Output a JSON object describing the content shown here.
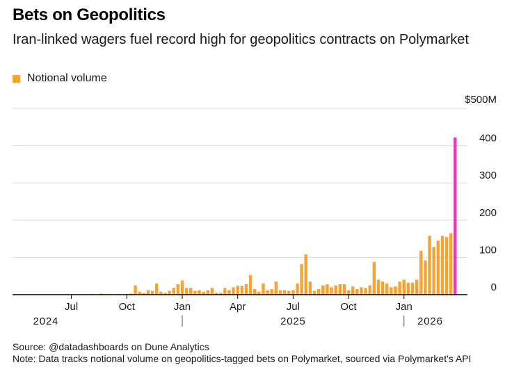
{
  "title": "Bets on Geopolitics",
  "subtitle": "Iran-linked wagers fuel record high for geopolitics contracts on Polymarket",
  "legend": {
    "label": "Notional volume"
  },
  "colors": {
    "bar": "#f5a431",
    "highlight": "#e63ab8",
    "grid": "#d9d9d9",
    "axis": "#000000"
  },
  "source": "Source: @datadashboards on Dune Analytics",
  "note": "Note: Data tracks notional volume on geopolitics-tagged bets on Polymarket, sourced via Polymarket's API",
  "chart_data": {
    "type": "bar",
    "title": "Bets on Geopolitics",
    "ylabel": "Notional volume",
    "y_unit_label": "$500M",
    "ylim": [
      0,
      500
    ],
    "y_ticks": [
      {
        "value": 0,
        "label": "0"
      },
      {
        "value": 100,
        "label": "100"
      },
      {
        "value": 200,
        "label": "200"
      },
      {
        "value": 300,
        "label": "300"
      },
      {
        "value": 400,
        "label": "400"
      },
      {
        "value": 500,
        "label": "$500M"
      }
    ],
    "x_ticks": [
      {
        "week": 12,
        "label": "Jul"
      },
      {
        "week": 25,
        "label": "Oct"
      },
      {
        "week": 38,
        "label": "Jan"
      },
      {
        "week": 51,
        "label": "Apr"
      },
      {
        "week": 64,
        "label": "Jul"
      },
      {
        "week": 77,
        "label": "Oct"
      },
      {
        "week": 90,
        "label": "Jan"
      }
    ],
    "year_labels": [
      {
        "week": 6,
        "label": "2024"
      },
      {
        "week": 64,
        "label": "2025"
      },
      {
        "week": 93,
        "label": "2026"
      }
    ],
    "year_dividers": [
      38,
      90
    ],
    "x_range_weeks": [
      0,
      104
    ],
    "series": [
      {
        "name": "Notional volume",
        "values": [
          0,
          0,
          0,
          0,
          0,
          0,
          0,
          0,
          0,
          0,
          0,
          0,
          0,
          0,
          0,
          0,
          0,
          2,
          1,
          3,
          0,
          2,
          1,
          2,
          1,
          2,
          3,
          25,
          8,
          4,
          12,
          10,
          30,
          8,
          5,
          10,
          18,
          28,
          38,
          18,
          18,
          10,
          12,
          8,
          12,
          18,
          5,
          5,
          18,
          12,
          20,
          24,
          24,
          28,
          52,
          15,
          8,
          30,
          12,
          15,
          35,
          12,
          12,
          10,
          12,
          30,
          82,
          108,
          35,
          10,
          15,
          25,
          28,
          20,
          25,
          28,
          28,
          12,
          22,
          15,
          20,
          18,
          25,
          88,
          40,
          35,
          30,
          20,
          22,
          35,
          40,
          32,
          32,
          40,
          118,
          92,
          158,
          128,
          145,
          158,
          155,
          165,
          422
        ]
      }
    ]
  }
}
